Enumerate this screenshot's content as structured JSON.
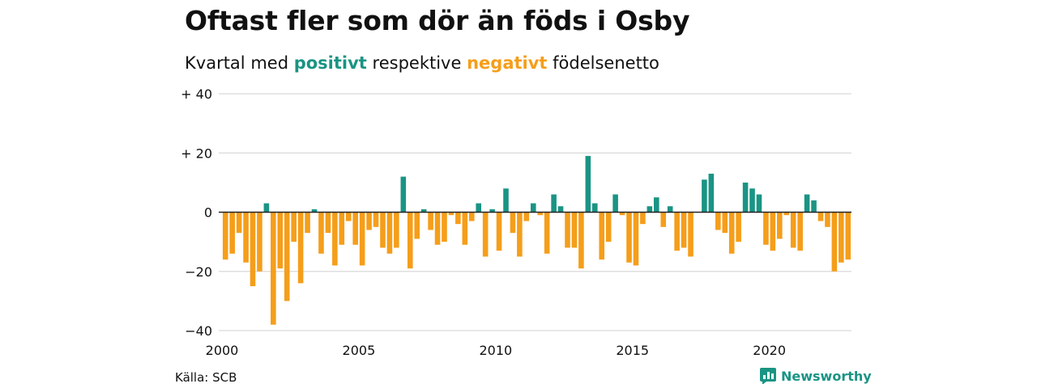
{
  "header": {
    "title": "Oftast fler som dör än föds i Osby",
    "subtitle_prefix": "Kvartal med",
    "subtitle_positive": "positivt",
    "subtitle_middle": "respektive",
    "subtitle_negative": "negativt",
    "subtitle_suffix": "födelsenetto"
  },
  "footer": {
    "source": "Källa: SCB",
    "brand": "Newsworthy",
    "brand_icon": "bar-chart-icon"
  },
  "colors": {
    "positive": "#1a9484",
    "negative": "#f59e1a",
    "grid": "#d9d9d9",
    "zero_line": "#222222"
  },
  "chart_data": {
    "type": "bar",
    "title": "Oftast fler som dör än föds i Osby",
    "subtitle": "Kvartal med positivt respektive negativt födelsenetto",
    "x_start": "2000",
    "x_end": "2023",
    "x_ticks": [
      "2000",
      "2005",
      "2010",
      "2015",
      "2020"
    ],
    "y_ticks": [
      40,
      20,
      0,
      -20,
      -40
    ],
    "y_tick_labels": [
      "+ 40",
      "+ 20",
      "0",
      "−20",
      "−40"
    ],
    "ylim": [
      -40,
      40
    ],
    "grid": true,
    "values": [
      -16,
      -14,
      -7,
      -17,
      -25,
      -20,
      3,
      -38,
      -19,
      -30,
      -10,
      -24,
      -7,
      1,
      -14,
      -7,
      -18,
      -11,
      -3,
      -11,
      -18,
      -6,
      -5,
      -12,
      -14,
      -12,
      12,
      -19,
      -9,
      1,
      -6,
      -11,
      -10,
      -1,
      -4,
      -11,
      -3,
      3,
      -15,
      1,
      -13,
      8,
      -7,
      -15,
      -3,
      3,
      -1,
      -14,
      6,
      2,
      -12,
      -12,
      -19,
      19,
      3,
      -16,
      -10,
      6,
      -1,
      -17,
      -18,
      -4,
      2,
      5,
      -5,
      2,
      -13,
      -12,
      -15,
      0,
      11,
      13,
      -6,
      -7,
      -14,
      -10,
      10,
      8,
      6,
      -11,
      -13,
      -9,
      -1,
      -12,
      -13,
      6,
      4,
      -3,
      -5,
      -20,
      -17,
      -16
    ]
  }
}
